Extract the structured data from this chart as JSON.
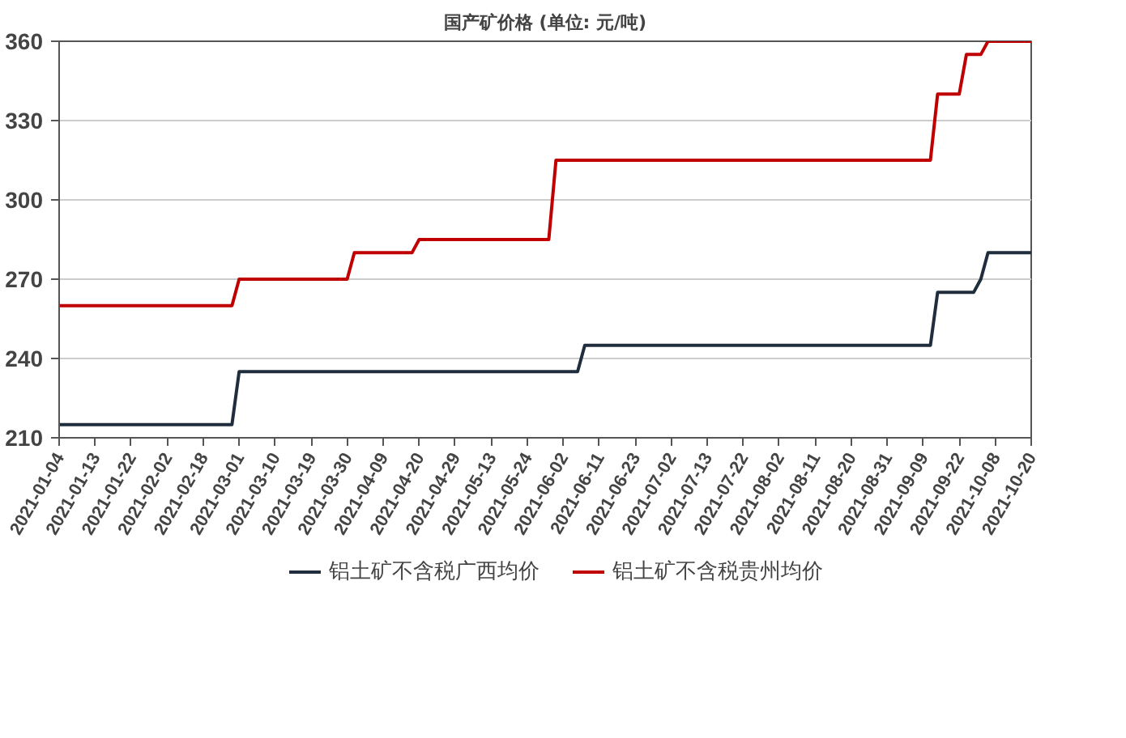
{
  "chart_data": {
    "type": "line",
    "title": "国产矿价格 (单位: 元/吨)",
    "categories": [
      "2021-01-04",
      null,
      null,
      null,
      null,
      "2021-01-13",
      null,
      null,
      null,
      null,
      "2021-01-22",
      null,
      null,
      null,
      null,
      "2021-02-02",
      null,
      null,
      null,
      null,
      "2021-02-18",
      null,
      null,
      null,
      null,
      "2021-03-01",
      null,
      null,
      null,
      null,
      "2021-03-10",
      null,
      null,
      null,
      null,
      "2021-03-19",
      null,
      null,
      null,
      null,
      "2021-03-30",
      null,
      null,
      null,
      null,
      "2021-04-09",
      null,
      null,
      null,
      null,
      "2021-04-20",
      null,
      null,
      null,
      null,
      "2021-04-29",
      null,
      null,
      null,
      null,
      "2021-05-13",
      null,
      null,
      null,
      null,
      "2021-05-24",
      null,
      null,
      null,
      null,
      "2021-06-02",
      null,
      null,
      null,
      null,
      "2021-06-11",
      null,
      null,
      null,
      null,
      "2021-06-23",
      null,
      null,
      null,
      null,
      "2021-07-02",
      null,
      null,
      null,
      null,
      "2021-07-13",
      null,
      null,
      null,
      null,
      "2021-07-22",
      null,
      null,
      null,
      null,
      "2021-08-02",
      null,
      null,
      null,
      null,
      "2021-08-11",
      null,
      null,
      null,
      null,
      "2021-08-20",
      null,
      null,
      null,
      null,
      "2021-08-31",
      null,
      null,
      null,
      null,
      "2021-09-09",
      null,
      null,
      null,
      null,
      "2021-09-22",
      null,
      null,
      null,
      null,
      "2021-10-08",
      null,
      null,
      null,
      null,
      "2021-10-20"
    ],
    "ylim": [
      210,
      360
    ],
    "yticks": [
      210,
      240,
      270,
      300,
      330,
      360
    ],
    "grid": "y",
    "legend": "bottom",
    "line_style": "solid",
    "series": [
      {
        "name": "铝土矿不含税广西均价",
        "color": "#1f2d3d",
        "values": [
          215,
          215,
          215,
          215,
          215,
          215,
          215,
          215,
          215,
          215,
          215,
          215,
          215,
          215,
          215,
          215,
          215,
          215,
          215,
          215,
          215,
          215,
          215,
          215,
          215,
          235,
          235,
          235,
          235,
          235,
          235,
          235,
          235,
          235,
          235,
          235,
          235,
          235,
          235,
          235,
          235,
          235,
          235,
          235,
          235,
          235,
          235,
          235,
          235,
          235,
          235,
          235,
          235,
          235,
          235,
          235,
          235,
          235,
          235,
          235,
          235,
          235,
          235,
          235,
          235,
          235,
          235,
          235,
          235,
          235,
          235,
          235,
          235,
          245,
          245,
          245,
          245,
          245,
          245,
          245,
          245,
          245,
          245,
          245,
          245,
          245,
          245,
          245,
          245,
          245,
          245,
          245,
          245,
          245,
          245,
          245,
          245,
          245,
          245,
          245,
          245,
          245,
          245,
          245,
          245,
          245,
          245,
          245,
          245,
          245,
          245,
          245,
          245,
          245,
          245,
          245,
          245,
          245,
          245,
          245,
          245,
          245,
          265,
          265,
          265,
          265,
          265,
          265,
          270,
          280,
          280,
          280,
          280,
          280,
          280,
          280
        ]
      },
      {
        "name": "铝土矿不含税贵州均价",
        "color": "#c00000",
        "values": [
          260,
          260,
          260,
          260,
          260,
          260,
          260,
          260,
          260,
          260,
          260,
          260,
          260,
          260,
          260,
          260,
          260,
          260,
          260,
          260,
          260,
          260,
          260,
          260,
          260,
          270,
          270,
          270,
          270,
          270,
          270,
          270,
          270,
          270,
          270,
          270,
          270,
          270,
          270,
          270,
          270,
          280,
          280,
          280,
          280,
          280,
          280,
          280,
          280,
          280,
          285,
          285,
          285,
          285,
          285,
          285,
          285,
          285,
          285,
          285,
          285,
          285,
          285,
          285,
          285,
          285,
          285,
          285,
          285,
          315,
          315,
          315,
          315,
          315,
          315,
          315,
          315,
          315,
          315,
          315,
          315,
          315,
          315,
          315,
          315,
          315,
          315,
          315,
          315,
          315,
          315,
          315,
          315,
          315,
          315,
          315,
          315,
          315,
          315,
          315,
          315,
          315,
          315,
          315,
          315,
          315,
          315,
          315,
          315,
          315,
          315,
          315,
          315,
          315,
          315,
          315,
          315,
          315,
          315,
          315,
          315,
          315,
          340,
          340,
          340,
          340,
          355,
          355,
          355,
          360,
          360,
          360,
          360,
          360,
          360,
          360
        ]
      }
    ]
  }
}
